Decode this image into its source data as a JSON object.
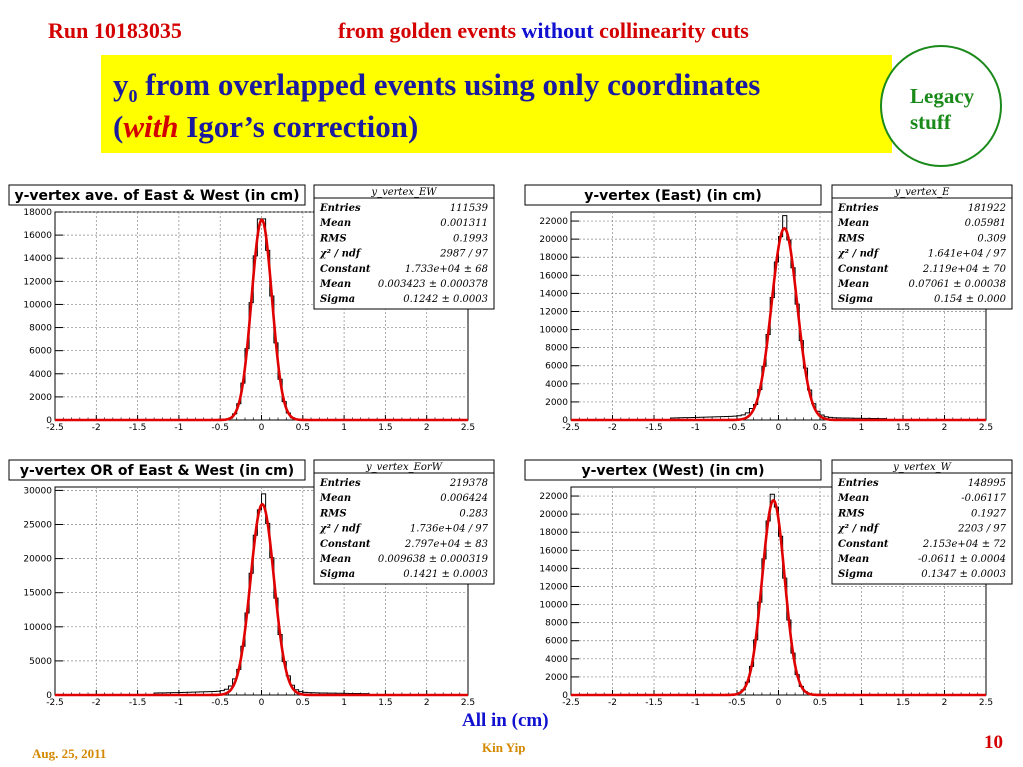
{
  "header": {
    "run": "Run 10183035",
    "subtitle_pre": "from golden events ",
    "subtitle_mid": "without",
    "subtitle_post": " collinearity cuts"
  },
  "title": {
    "line1_pre": "y",
    "line1_sub": "0",
    "line1_post": " from overlapped events using only coordinates",
    "line2_open": "(",
    "line2_em": "with",
    "line2_post": " Igor’s correction)"
  },
  "legacy_label": "Legacy stuff",
  "footer": {
    "units_note": "All in (cm)",
    "date": "Aug. 25, 2011",
    "author": "Kin Yip",
    "page": "10"
  },
  "colors": {
    "fit": "#e00000",
    "hist": "#000000",
    "title_bg": "#ffff00",
    "legacy_border": "#1a8a1a"
  },
  "chart_data": [
    {
      "type": "line",
      "title": "y-vertex ave. of East & West (in cm)",
      "stats_name": "y_vertex_EW",
      "stats": [
        [
          "Entries",
          "111539"
        ],
        [
          "Mean",
          "0.001311"
        ],
        [
          "RMS",
          "0.1993"
        ],
        [
          "χ² / ndf",
          "2987 / 97"
        ],
        [
          "Constant",
          "1.733e+04 ± 68"
        ],
        [
          "Mean",
          "0.003423 ± 0.000378"
        ],
        [
          "Sigma",
          "0.1242 ± 0.0003"
        ]
      ],
      "xlim": [
        -2.5,
        2.5
      ],
      "ylim": [
        0,
        18000
      ],
      "x_ticks": [
        "-2.5",
        "-2",
        "-1.5",
        "-1",
        "-0.5",
        "0",
        "0.5",
        "1",
        "1.5",
        "2",
        "2.5"
      ],
      "y_ticks": [
        "0",
        "2000",
        "4000",
        "6000",
        "8000",
        "10000",
        "12000",
        "14000",
        "16000",
        "18000"
      ],
      "y_tick_values": [
        0,
        2000,
        4000,
        6000,
        8000,
        10000,
        12000,
        14000,
        16000,
        18000
      ],
      "fit": {
        "constant": 17330,
        "mean": 0.003423,
        "sigma": 0.1242
      },
      "peak": 17400,
      "tail": 0
    },
    {
      "type": "line",
      "title": "y-vertex (East) (in cm)",
      "stats_name": "y_vertex_E",
      "stats": [
        [
          "Entries",
          "181922"
        ],
        [
          "Mean",
          "0.05981"
        ],
        [
          "RMS",
          "0.309"
        ],
        [
          "χ² / ndf",
          "1.641e+04 / 97"
        ],
        [
          "Constant",
          "2.119e+04 ± 70"
        ],
        [
          "Mean",
          "0.07061 ± 0.00038"
        ],
        [
          "Sigma",
          "0.154 ± 0.000"
        ]
      ],
      "xlim": [
        -2.5,
        2.5
      ],
      "ylim": [
        0,
        23000
      ],
      "x_ticks": [
        "-2.5",
        "-2",
        "-1.5",
        "-1",
        "-0.5",
        "0",
        "0.5",
        "1",
        "1.5",
        "2",
        "2.5"
      ],
      "y_ticks": [
        "0",
        "2000",
        "4000",
        "6000",
        "8000",
        "10000",
        "12000",
        "14000",
        "16000",
        "18000",
        "20000",
        "22000"
      ],
      "y_tick_values": [
        0,
        2000,
        4000,
        6000,
        8000,
        10000,
        12000,
        14000,
        16000,
        18000,
        20000,
        22000
      ],
      "fit": {
        "constant": 21190,
        "mean": 0.07061,
        "sigma": 0.154
      },
      "peak": 22600,
      "tail": 700
    },
    {
      "type": "line",
      "title": "y-vertex OR of East & West (in cm)",
      "stats_name": "y_vertex_EorW",
      "stats": [
        [
          "Entries",
          "219378"
        ],
        [
          "Mean",
          "0.006424"
        ],
        [
          "RMS",
          "0.283"
        ],
        [
          "χ² / ndf",
          "1.736e+04 / 97"
        ],
        [
          "Constant",
          "2.797e+04 ± 83"
        ],
        [
          "Mean",
          "0.009638 ± 0.000319"
        ],
        [
          "Sigma",
          "0.1421 ± 0.0003"
        ]
      ],
      "xlim": [
        -2.5,
        2.5
      ],
      "ylim": [
        0,
        30500
      ],
      "x_ticks": [
        "-2.5",
        "-2",
        "-1.5",
        "-1",
        "-0.5",
        "0",
        "0.5",
        "1",
        "1.5",
        "2",
        "2.5"
      ],
      "y_ticks": [
        "0",
        "5000",
        "10000",
        "15000",
        "20000",
        "25000",
        "30000"
      ],
      "y_tick_values": [
        0,
        5000,
        10000,
        15000,
        20000,
        25000,
        30000
      ],
      "fit": {
        "constant": 27970,
        "mean": 0.009638,
        "sigma": 0.1421
      },
      "peak": 29500,
      "tail": 900
    },
    {
      "type": "line",
      "title": "y-vertex (West) (in cm)",
      "stats_name": "y_vertex_W",
      "stats": [
        [
          "Entries",
          "148995"
        ],
        [
          "Mean",
          "-0.06117"
        ],
        [
          "RMS",
          "0.1927"
        ],
        [
          "χ² / ndf",
          "2203 / 97"
        ],
        [
          "Constant",
          "2.153e+04 ± 72"
        ],
        [
          "Mean",
          "-0.0611 ± 0.0004"
        ],
        [
          "Sigma",
          "0.1347 ± 0.0003"
        ]
      ],
      "xlim": [
        -2.5,
        2.5
      ],
      "ylim": [
        0,
        23000
      ],
      "x_ticks": [
        "-2.5",
        "-2",
        "-1.5",
        "-1",
        "-0.5",
        "0",
        "0.5",
        "1",
        "1.5",
        "2",
        "2.5"
      ],
      "y_ticks": [
        "0",
        "2000",
        "4000",
        "6000",
        "8000",
        "10000",
        "12000",
        "14000",
        "16000",
        "18000",
        "20000",
        "22000"
      ],
      "y_tick_values": [
        0,
        2000,
        4000,
        6000,
        8000,
        10000,
        12000,
        14000,
        16000,
        18000,
        20000,
        22000
      ],
      "fit": {
        "constant": 21530,
        "mean": -0.0611,
        "sigma": 0.1347
      },
      "peak": 22200,
      "tail": 0
    }
  ]
}
